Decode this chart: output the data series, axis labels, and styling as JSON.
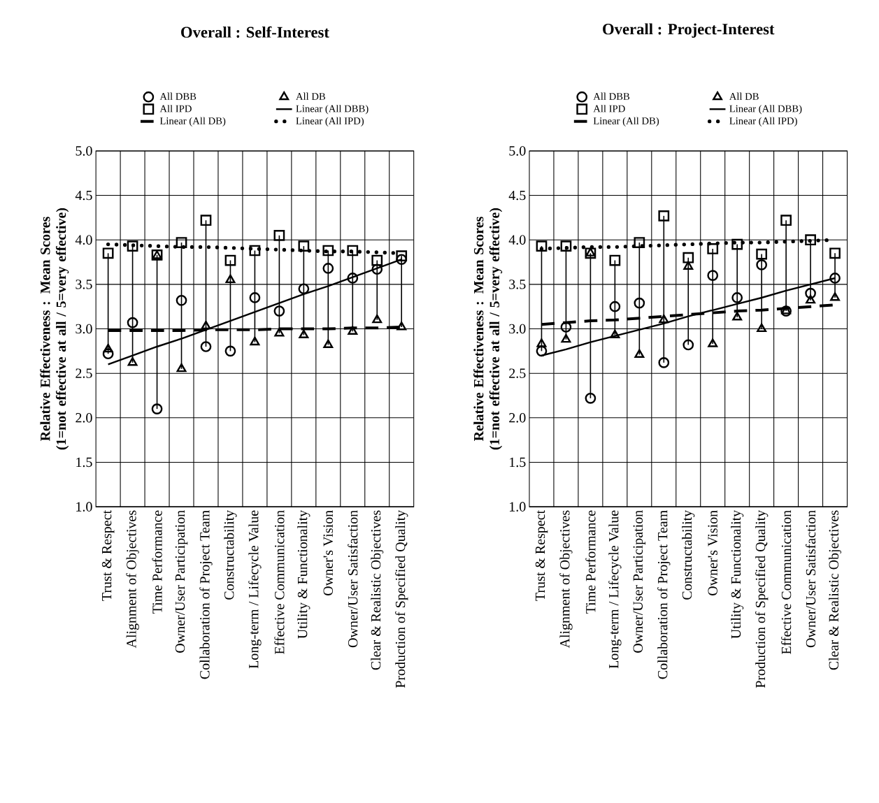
{
  "chart_data": [
    {
      "type": "scatter",
      "title": "Overall : Self-Interest",
      "ylabel": "Relative Effectiveness : Mean Scores (1=not effective at all / 5=very effective)",
      "categories": [
        "Trust & Respect",
        "Alignment of Objectives",
        "Time Performance",
        "Owner/User Participation",
        "Collaboration of Project Team",
        "Constructability",
        "Long-term / Lifecycle Value",
        "Effective Communication",
        "Utility & Functionality",
        "Owner's Vision",
        "Owner/User Satisfaction",
        "Clear & Realistic Objectives",
        "Production of Specified Quality"
      ],
      "ylim": [
        1.0,
        5.0
      ],
      "yticks": [
        {
          "value": 1,
          "label": "1.0"
        },
        {
          "value": 1.5,
          "label": "1.5"
        },
        {
          "value": 2,
          "label": "2.0"
        },
        {
          "value": 2.5,
          "label": "2.5"
        },
        {
          "value": 3,
          "label": "3.0"
        },
        {
          "value": 3.5,
          "label": "3.5"
        },
        {
          "value": 4,
          "label": "4.0"
        },
        {
          "value": 4.5,
          "label": "4.5"
        },
        {
          "value": 5,
          "label": "5.0"
        }
      ],
      "grid": true,
      "legend": "top",
      "series": [
        {
          "name": "All DBB",
          "marker": "circle",
          "color": "#000000",
          "values": [
            2.72,
            3.07,
            2.1,
            3.32,
            2.8,
            2.75,
            3.35,
            3.2,
            3.45,
            3.68,
            3.57,
            3.67,
            3.78
          ]
        },
        {
          "name": "All DB",
          "marker": "triangle",
          "color": "#000000",
          "values": [
            2.77,
            2.62,
            3.82,
            2.55,
            3.03,
            3.55,
            2.85,
            2.95,
            2.93,
            2.82,
            2.97,
            3.1,
            3.02
          ]
        },
        {
          "name": "All IPD",
          "marker": "square",
          "color": "#000000",
          "values": [
            3.85,
            3.93,
            3.83,
            3.97,
            4.22,
            3.77,
            3.88,
            4.05,
            3.93,
            3.88,
            3.88,
            3.77,
            3.82
          ]
        },
        {
          "name": "Linear (All DBB)",
          "type": "line",
          "line_style": "solid",
          "color": "#000000",
          "values": [
            2.6,
            2.7,
            2.8,
            2.89,
            2.99,
            3.09,
            3.19,
            3.29,
            3.39,
            3.48,
            3.58,
            3.68,
            3.78
          ]
        },
        {
          "name": "Linear (All DB)",
          "type": "line",
          "line_style": "dashed",
          "color": "#000000",
          "values": [
            2.98,
            2.98,
            2.98,
            2.98,
            2.99,
            2.99,
            2.99,
            3.0,
            3.0,
            3.0,
            3.01,
            3.01,
            3.02
          ]
        },
        {
          "name": "Linear (All IPD)",
          "type": "line",
          "line_style": "dotted",
          "color": "#000000",
          "values": [
            3.95,
            3.94,
            3.93,
            3.92,
            3.92,
            3.91,
            3.9,
            3.89,
            3.88,
            3.87,
            3.87,
            3.86,
            3.85
          ]
        }
      ]
    },
    {
      "type": "scatter",
      "title": "Overall : Project-Interest",
      "ylabel": "Relative Effectiveness : Mean Scores (1=not effective at all / 5=very effective)",
      "categories": [
        "Trust & Respect",
        "Alignment of Objectives",
        "Time Performance",
        "Long-term / Lifecycle Value",
        "Owner/User Participation",
        "Collaboration of Project Team",
        "Constructability",
        "Owner's Vision",
        "Utility & Functionality",
        "Production of Specified Quality",
        "Effective Communication",
        "Owner/User Satisfaction",
        "Clear & Realistic Objectives"
      ],
      "ylim": [
        1.0,
        5.0
      ],
      "yticks": [
        {
          "value": 1,
          "label": "1.0"
        },
        {
          "value": 1.5,
          "label": "1.5"
        },
        {
          "value": 2,
          "label": "2.0"
        },
        {
          "value": 2.5,
          "label": "2.5"
        },
        {
          "value": 3,
          "label": "3.0"
        },
        {
          "value": 3.5,
          "label": "3.5"
        },
        {
          "value": 4,
          "label": "4.0"
        },
        {
          "value": 4.5,
          "label": "4.5"
        },
        {
          "value": 5,
          "label": "5.0"
        }
      ],
      "grid": true,
      "legend": "top",
      "series": [
        {
          "name": "All DBB",
          "marker": "circle",
          "color": "#000000",
          "values": [
            2.75,
            3.02,
            2.22,
            3.25,
            3.29,
            2.62,
            2.82,
            3.6,
            3.35,
            3.72,
            3.2,
            3.4,
            3.57
          ]
        },
        {
          "name": "All DB",
          "marker": "triangle",
          "color": "#000000",
          "values": [
            2.83,
            2.88,
            3.85,
            2.93,
            2.71,
            3.1,
            3.7,
            2.83,
            3.13,
            3.0,
            3.2,
            3.32,
            3.35
          ]
        },
        {
          "name": "All IPD",
          "marker": "square",
          "color": "#000000",
          "values": [
            3.93,
            3.93,
            3.85,
            3.77,
            3.97,
            4.27,
            3.8,
            3.9,
            3.95,
            3.84,
            4.22,
            4.0,
            3.85
          ]
        },
        {
          "name": "Linear (All DBB)",
          "type": "line",
          "line_style": "solid",
          "color": "#000000",
          "values": [
            2.7,
            2.77,
            2.85,
            2.92,
            2.99,
            3.06,
            3.14,
            3.21,
            3.28,
            3.35,
            3.43,
            3.5,
            3.57
          ]
        },
        {
          "name": "Linear (All DB)",
          "type": "line",
          "line_style": "dashed",
          "color": "#000000",
          "values": [
            3.05,
            3.07,
            3.09,
            3.1,
            3.12,
            3.14,
            3.16,
            3.18,
            3.2,
            3.21,
            3.23,
            3.25,
            3.27
          ]
        },
        {
          "name": "Linear (All IPD)",
          "type": "line",
          "line_style": "dotted",
          "color": "#000000",
          "values": [
            3.9,
            3.91,
            3.92,
            3.92,
            3.93,
            3.94,
            3.95,
            3.96,
            3.97,
            3.97,
            3.98,
            3.99,
            4.0
          ]
        }
      ]
    }
  ]
}
